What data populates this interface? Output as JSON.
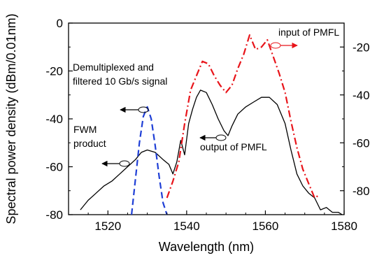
{
  "chart_data": {
    "type": "line",
    "xlabel": "Wavelength (nm)",
    "ylabel": "Spectral power density (dBm/0.01nm)",
    "xlim": [
      1510,
      1580
    ],
    "ylim_left": [
      -80,
      0
    ],
    "ylim_right": [
      -90,
      -10
    ],
    "x_ticks": [
      1520,
      1540,
      1560,
      1580
    ],
    "y_ticks_left": [
      0,
      -20,
      -40,
      -60,
      -80
    ],
    "y_ticks_right": [
      -20,
      -40,
      -60,
      -80
    ],
    "grid": false,
    "legend": "none",
    "annotations": {
      "demux": [
        "Demultiplexed and",
        "filtered 10 Gb/s signal"
      ],
      "fwm": [
        "FWM",
        "product"
      ],
      "output": "output of PMFL",
      "input": "input of PMFL"
    },
    "series": [
      {
        "axis": "left",
        "color": "#000000",
        "style": "solid",
        "x": [
          1513.0,
          1515,
          1517,
          1519,
          1521,
          1523,
          1525,
          1527,
          1528.5,
          1530,
          1532,
          1534,
          1535.5,
          1536.5,
          1537.5,
          1538.5,
          1539.5,
          1540.5,
          1541.5,
          1542.5,
          1543.5,
          1545,
          1546.5,
          1548,
          1549.5,
          1550.5,
          1551.5,
          1553,
          1555,
          1557,
          1559,
          1561,
          1563,
          1565,
          1566.5,
          1568,
          1569.5,
          1571,
          1572.5,
          1574,
          1575.5,
          1577,
          1578.5,
          1579.5
        ],
        "y": [
          -78.0,
          -74,
          -71,
          -68,
          -66,
          -63,
          -60,
          -57,
          -54,
          -53,
          -54,
          -57,
          -59,
          -63,
          -58,
          -49,
          -55,
          -42,
          -36,
          -31,
          -28,
          -29,
          -34,
          -40,
          -45,
          -47,
          -43,
          -38,
          -35,
          -33,
          -31,
          -31,
          -34,
          -42,
          -53,
          -63,
          -68,
          -71,
          -73,
          -78,
          -77,
          -79,
          -79,
          -80
        ]
      },
      {
        "axis": "left",
        "color": "#1f3fd6",
        "style": "dashed",
        "x": [
          1526.0,
          1527,
          1528,
          1529,
          1530,
          1531,
          1532,
          1533,
          1534,
          1535
        ],
        "y": [
          -80.0,
          -65,
          -50,
          -39,
          -35,
          -40,
          -51,
          -64,
          -75,
          -80
        ]
      },
      {
        "axis": "right",
        "color": "#e8141a",
        "style": "dashdot",
        "x": [
          1535.0,
          1536.5,
          1538,
          1539.5,
          1541,
          1542.5,
          1544,
          1545.5,
          1547,
          1548.5,
          1550,
          1551.5,
          1553,
          1554.5,
          1556,
          1557.5,
          1559,
          1560.5,
          1562,
          1563.5,
          1565,
          1566.5,
          1568,
          1569.5,
          1571,
          1572.5,
          1573.5
        ],
        "y": [
          -83.0,
          -76,
          -68,
          -52,
          -38,
          -32,
          -26,
          -27,
          -32,
          -36,
          -39,
          -36,
          -29,
          -23,
          -15,
          -21,
          -20,
          -17,
          -24,
          -31,
          -39,
          -51,
          -62,
          -71,
          -77,
          -83,
          -82
        ]
      }
    ]
  }
}
